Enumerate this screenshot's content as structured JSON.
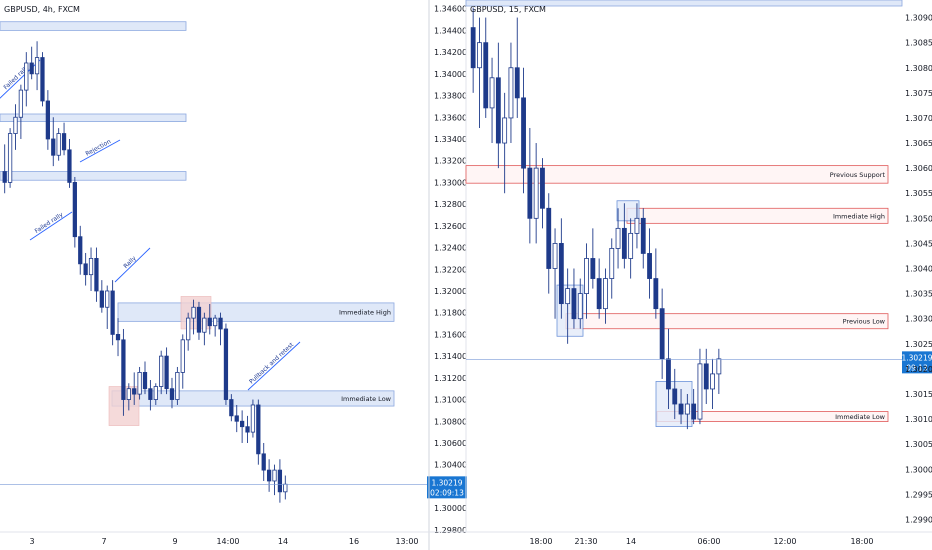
{
  "colors": {
    "bull": "#ffffff",
    "bear": "#1e3a8a",
    "wick": "#1e3a8a",
    "zone_fill": "#dfe8f8",
    "zone_stroke": "#8ca8e0",
    "red_line": "#e05a5a",
    "pink_fill": "#f3d2d2",
    "axis_text": "#131722",
    "price_tag": "#1976d2",
    "price_line": "#2962ff"
  },
  "chart_data": [
    {
      "type": "candlestick",
      "title": "GBPUSD, 4h, FXCM",
      "symbol": "GBPUSD",
      "timeframe": "4h",
      "broker": "FXCM",
      "y_axis_ticks": [
        "1.34600",
        "1.34400",
        "1.34200",
        "1.34000",
        "1.33800",
        "1.33600",
        "1.33400",
        "1.33200",
        "1.33000",
        "1.32800",
        "1.32600",
        "1.32400",
        "1.32200",
        "1.32000",
        "1.31800",
        "1.31600",
        "1.31400",
        "1.31200",
        "1.31000",
        "1.30800",
        "1.30600",
        "1.30400",
        "1.30200",
        "1.30000",
        "1.29800"
      ],
      "x_axis_ticks": [
        "3",
        "7",
        "9",
        "14:00",
        "14",
        "16",
        "13:00"
      ],
      "ylim": [
        1.2978,
        1.3468
      ],
      "last_price": "1.30219",
      "countdown": "02:09:13",
      "zones": [
        {
          "low": 1.344,
          "high": 1.3448,
          "label": ""
        },
        {
          "low": 1.3356,
          "high": 1.3363,
          "label": ""
        },
        {
          "low": 1.3302,
          "high": 1.331,
          "label": ""
        },
        {
          "low": 1.3172,
          "high": 1.3189,
          "label": "Immediate High"
        },
        {
          "low": 1.3094,
          "high": 1.3108,
          "label": "Immediate Low"
        }
      ],
      "annotations": [
        "Failed rally",
        "Rejection",
        "Failed rally",
        "Rally",
        "Pullback and retest"
      ],
      "candles": [
        [
          1.331,
          1.3335,
          1.329,
          1.33
        ],
        [
          1.33,
          1.335,
          1.3295,
          1.3345
        ],
        [
          1.3345,
          1.3372,
          1.333,
          1.336
        ],
        [
          1.336,
          1.339,
          1.334,
          1.3385
        ],
        [
          1.3385,
          1.342,
          1.337,
          1.341
        ],
        [
          1.341,
          1.3425,
          1.3395,
          1.34
        ],
        [
          1.34,
          1.343,
          1.3385,
          1.3415
        ],
        [
          1.3415,
          1.342,
          1.337,
          1.3375
        ],
        [
          1.3375,
          1.3385,
          1.333,
          1.334
        ],
        [
          1.334,
          1.336,
          1.3315,
          1.3325
        ],
        [
          1.3325,
          1.335,
          1.332,
          1.3345
        ],
        [
          1.3345,
          1.3355,
          1.3325,
          1.333
        ],
        [
          1.333,
          1.334,
          1.3295,
          1.33
        ],
        [
          1.33,
          1.3305,
          1.324,
          1.325
        ],
        [
          1.325,
          1.326,
          1.3215,
          1.3225
        ],
        [
          1.3225,
          1.3235,
          1.3205,
          1.3215
        ],
        [
          1.3215,
          1.324,
          1.32,
          1.323
        ],
        [
          1.323,
          1.324,
          1.319,
          1.32
        ],
        [
          1.32,
          1.321,
          1.318,
          1.3185
        ],
        [
          1.3185,
          1.3205,
          1.3165,
          1.32
        ],
        [
          1.32,
          1.321,
          1.315,
          1.316
        ],
        [
          1.316,
          1.3175,
          1.314,
          1.3155
        ],
        [
          1.3155,
          1.3165,
          1.3085,
          1.31
        ],
        [
          1.31,
          1.3115,
          1.309,
          1.311
        ],
        [
          1.311,
          1.3125,
          1.3095,
          1.3105
        ],
        [
          1.3105,
          1.313,
          1.31,
          1.3125
        ],
        [
          1.3125,
          1.3135,
          1.3105,
          1.311
        ],
        [
          1.311,
          1.3118,
          1.309,
          1.31
        ],
        [
          1.31,
          1.3115,
          1.3095,
          1.3112
        ],
        [
          1.3112,
          1.3145,
          1.3105,
          1.314
        ],
        [
          1.314,
          1.3148,
          1.3105,
          1.311
        ],
        [
          1.311,
          1.312,
          1.3092,
          1.31
        ],
        [
          1.31,
          1.313,
          1.3095,
          1.3125
        ],
        [
          1.3125,
          1.316,
          1.311,
          1.3155
        ],
        [
          1.3155,
          1.318,
          1.3145,
          1.3175
        ],
        [
          1.3175,
          1.3192,
          1.316,
          1.3185
        ],
        [
          1.3185,
          1.319,
          1.3155,
          1.3162
        ],
        [
          1.3162,
          1.318,
          1.315,
          1.3175
        ],
        [
          1.3175,
          1.3188,
          1.316,
          1.3168
        ],
        [
          1.3168,
          1.3178,
          1.3158,
          1.3175
        ],
        [
          1.3175,
          1.318,
          1.315,
          1.3165
        ],
        [
          1.3165,
          1.317,
          1.3095,
          1.31
        ],
        [
          1.31,
          1.3105,
          1.308,
          1.3085
        ],
        [
          1.3085,
          1.3095,
          1.307,
          1.308
        ],
        [
          1.308,
          1.309,
          1.306,
          1.3075
        ],
        [
          1.3075,
          1.3085,
          1.306,
          1.307
        ],
        [
          1.307,
          1.31,
          1.3065,
          1.3095
        ],
        [
          1.3095,
          1.31,
          1.304,
          1.305
        ],
        [
          1.305,
          1.306,
          1.3025,
          1.3035
        ],
        [
          1.3035,
          1.3045,
          1.3015,
          1.3025
        ],
        [
          1.3025,
          1.304,
          1.3012,
          1.3035
        ],
        [
          1.3035,
          1.3045,
          1.3005,
          1.3015
        ],
        [
          1.3015,
          1.303,
          1.3008,
          1.3022
        ]
      ]
    },
    {
      "type": "candlestick",
      "title": "GBPUSD, 15, FXCM",
      "symbol": "GBPUSD",
      "timeframe": "15",
      "broker": "FXCM",
      "y_axis_ticks": [
        "1.30900",
        "1.30850",
        "1.30800",
        "1.30750",
        "1.30700",
        "1.30650",
        "1.30600",
        "1.30550",
        "1.30500",
        "1.30450",
        "1.30400",
        "1.30350",
        "1.30300",
        "1.30250",
        "1.30200",
        "1.30150",
        "1.30100",
        "1.30050",
        "1.30000",
        "1.29950",
        "1.29900"
      ],
      "x_axis_ticks": [
        "18:00",
        "21:30",
        "14",
        "06:00",
        "12:00",
        "18:00"
      ],
      "ylim": [
        1.29875,
        1.30935
      ],
      "last_price": "1.30219",
      "countdown": "09:13",
      "levels": [
        {
          "low": 1.3057,
          "high": 1.30605,
          "label": "Previous Support"
        },
        {
          "low": 1.3049,
          "high": 1.3052,
          "label": "Immediate High"
        },
        {
          "low": 1.3028,
          "high": 1.3031,
          "label": "Previous Low"
        },
        {
          "low": 1.30095,
          "high": 1.30115,
          "label": "Immediate Low"
        }
      ],
      "candles": [
        [
          1.3088,
          1.3092,
          1.3075,
          1.308
        ],
        [
          1.308,
          1.309,
          1.3068,
          1.3085
        ],
        [
          1.3085,
          1.309,
          1.307,
          1.3072
        ],
        [
          1.3072,
          1.3082,
          1.3065,
          1.3078
        ],
        [
          1.3078,
          1.3085,
          1.306,
          1.3065
        ],
        [
          1.3065,
          1.3075,
          1.3055,
          1.307
        ],
        [
          1.307,
          1.3085,
          1.3065,
          1.308
        ],
        [
          1.308,
          1.309,
          1.307,
          1.3074
        ],
        [
          1.3074,
          1.308,
          1.3055,
          1.306
        ],
        [
          1.306,
          1.3068,
          1.3045,
          1.305
        ],
        [
          1.305,
          1.3065,
          1.3045,
          1.306
        ],
        [
          1.306,
          1.3062,
          1.3048,
          1.3052
        ],
        [
          1.3052,
          1.3055,
          1.3035,
          1.304
        ],
        [
          1.304,
          1.3048,
          1.303,
          1.3045
        ],
        [
          1.3045,
          1.305,
          1.303,
          1.3033
        ],
        [
          1.3033,
          1.304,
          1.3025,
          1.3036
        ],
        [
          1.3036,
          1.304,
          1.3028,
          1.303
        ],
        [
          1.303,
          1.3038,
          1.3028,
          1.3035
        ],
        [
          1.3035,
          1.3045,
          1.303,
          1.3042
        ],
        [
          1.3042,
          1.3048,
          1.3036,
          1.3038
        ],
        [
          1.3038,
          1.3042,
          1.303,
          1.3032
        ],
        [
          1.3032,
          1.304,
          1.3029,
          1.3038
        ],
        [
          1.3038,
          1.3046,
          1.3034,
          1.3044
        ],
        [
          1.3044,
          1.3052,
          1.304,
          1.3048
        ],
        [
          1.3048,
          1.3053,
          1.304,
          1.3042
        ],
        [
          1.3042,
          1.305,
          1.3038,
          1.3047
        ],
        [
          1.3047,
          1.3053,
          1.3044,
          1.305
        ],
        [
          1.305,
          1.3052,
          1.304,
          1.3043
        ],
        [
          1.3043,
          1.3048,
          1.3034,
          1.3038
        ],
        [
          1.3038,
          1.3044,
          1.303,
          1.3032
        ],
        [
          1.3032,
          1.3036,
          1.3018,
          1.3022
        ],
        [
          1.3022,
          1.3028,
          1.3012,
          1.3016
        ],
        [
          1.3016,
          1.302,
          1.301,
          1.3013
        ],
        [
          1.3013,
          1.3016,
          1.3009,
          1.3011
        ],
        [
          1.3011,
          1.3015,
          1.3008,
          1.3013
        ],
        [
          1.3013,
          1.3016,
          1.3009,
          1.301
        ],
        [
          1.301,
          1.3024,
          1.3009,
          1.3021
        ],
        [
          1.3021,
          1.3024,
          1.3013,
          1.3016
        ],
        [
          1.3016,
          1.3022,
          1.3012,
          1.3019
        ],
        [
          1.3019,
          1.3024,
          1.3015,
          1.3022
        ]
      ]
    }
  ]
}
